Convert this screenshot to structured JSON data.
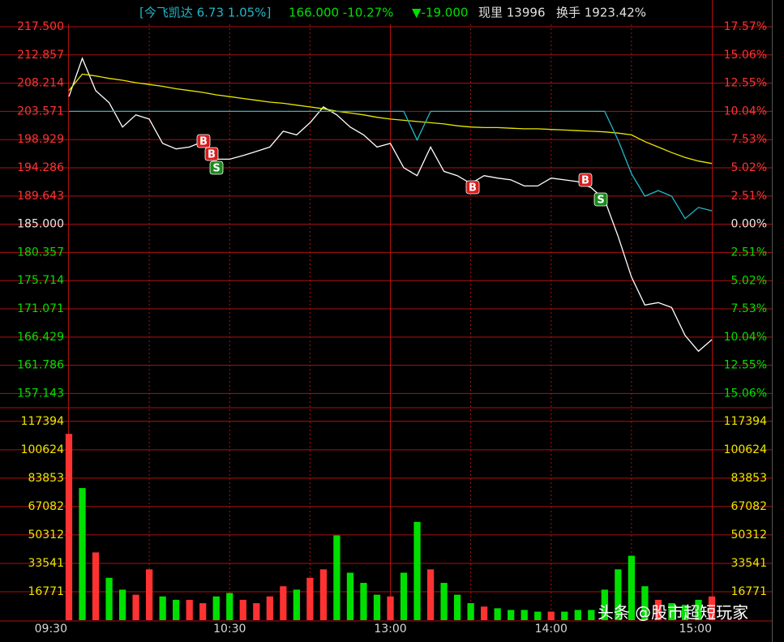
{
  "header": {
    "compare": "[今飞凯达 6.73 1.05%]",
    "price": "166.000 -10.27%",
    "change": "▼-19.000",
    "volume": "现里 13996",
    "turnover": "换手 1923.42%"
  },
  "trade_signals": [
    "B",
    "B",
    "S",
    "B",
    "B",
    "S"
  ],
  "watermark": "头条 @股市超短玩家",
  "chart_data": [
    {
      "type": "line",
      "categories": [
        "09:30",
        null,
        null,
        null,
        null,
        null,
        null,
        null,
        null,
        null,
        null,
        null,
        "10:30",
        null,
        null,
        null,
        null,
        null,
        null,
        null,
        null,
        null,
        null,
        null,
        "13:00",
        null,
        null,
        null,
        null,
        null,
        null,
        null,
        null,
        null,
        null,
        null,
        "14:00",
        null,
        null,
        null,
        null,
        null,
        null,
        null,
        null,
        null,
        null,
        null,
        "15:00"
      ],
      "series": [
        {
          "color": "#ffffff",
          "values": [
            206,
            212.3,
            207,
            205,
            201,
            203,
            202.3,
            198.3,
            197.4,
            197.7,
            198.6,
            195.7,
            195.7,
            196.3,
            197,
            197.7,
            200.3,
            199.7,
            201.7,
            204.3,
            203,
            201,
            199.7,
            197.7,
            198.3,
            194.3,
            193,
            197.7,
            193.7,
            193,
            191.7,
            193,
            192.6,
            192.3,
            191.3,
            191.3,
            192.6,
            192.3,
            192,
            191,
            189,
            183,
            176.3,
            171.7,
            172.1,
            171.3,
            166.7,
            164.1,
            166
          ]
        },
        {
          "color": "#e8e800",
          "values": [
            207,
            209.7,
            209.4,
            209,
            208.7,
            208.3,
            208,
            207.7,
            207.3,
            207,
            206.7,
            206.3,
            206,
            205.7,
            205.4,
            205.1,
            204.9,
            204.6,
            204.3,
            204,
            203.6,
            203.3,
            203,
            202.6,
            202.3,
            202.1,
            201.9,
            201.7,
            201.5,
            201.2,
            201,
            200.9,
            200.9,
            200.8,
            200.7,
            200.7,
            200.6,
            200.5,
            200.4,
            200.3,
            200.2,
            200,
            199.7,
            198.6,
            197.7,
            196.8,
            196,
            195.4,
            195
          ]
        },
        {
          "color": "#1fb8c8",
          "axis": "y2",
          "values": [
            10.04,
            10.04,
            10.04,
            10.04,
            10.04,
            10.04,
            10.04,
            10.04,
            10.04,
            10.04,
            10.04,
            10.04,
            10.04,
            10.04,
            10.04,
            10.04,
            10.04,
            10.04,
            10.04,
            10.04,
            10.04,
            10.04,
            10.04,
            10.04,
            10.04,
            10.04,
            7.5,
            10.04,
            10.04,
            10.04,
            10.04,
            10.04,
            10.04,
            10.04,
            10.04,
            10.04,
            10.04,
            10.04,
            10.04,
            10.04,
            10.04,
            7.5,
            4.5,
            2.5,
            3,
            2.5,
            0.5,
            1.5,
            1.2
          ]
        }
      ],
      "ylim": [
        154.8,
        217.5
      ],
      "yticks": [
        {
          "value": 217.5,
          "label": "217.500"
        },
        212.857,
        208.214,
        203.571,
        198.929,
        194.286,
        189.643,
        {
          "value": 185,
          "label": "185.000"
        },
        180.357,
        175.714,
        171.071,
        166.429,
        161.786,
        157.143
      ],
      "y2lim": [
        -16.32,
        17.57
      ],
      "y2ticks": [
        {
          "value": 17.57,
          "label": "17.57%"
        },
        {
          "value": 15.06,
          "label": "15.06%"
        },
        {
          "value": 12.55,
          "label": "12.55%"
        },
        {
          "value": 10.04,
          "label": "10.04%"
        },
        {
          "value": 7.53,
          "label": "7.53%"
        },
        {
          "value": 5.02,
          "label": "5.02%"
        },
        {
          "value": 2.51,
          "label": "2.51%"
        },
        {
          "value": 0,
          "label": "0.00%"
        },
        {
          "value": -2.51,
          "label": "2.51%"
        },
        {
          "value": -5.02,
          "label": "5.02%"
        },
        {
          "value": -7.53,
          "label": "7.53%"
        },
        {
          "value": -10.04,
          "label": "10.04%"
        },
        {
          "value": -12.55,
          "label": "12.55%"
        },
        {
          "value": -15.06,
          "label": "15.06%"
        }
      ],
      "grid": true
    },
    {
      "type": "bar",
      "values": [
        110000,
        78000,
        40000,
        25000,
        18000,
        15000,
        30000,
        14000,
        12000,
        12000,
        10000,
        14000,
        16000,
        12000,
        10000,
        14000,
        20000,
        18000,
        25000,
        30000,
        50000,
        28000,
        22000,
        15000,
        14000,
        28000,
        58000,
        30000,
        22000,
        15000,
        10000,
        8000,
        7000,
        6000,
        6000,
        5000,
        5000,
        5000,
        6000,
        6000,
        18000,
        30000,
        38000,
        20000,
        12000,
        10000,
        9000,
        12000,
        14000
      ],
      "colors": [
        "#ff3232",
        "#00e000",
        "#ff3232",
        "#00e000",
        "#00e000",
        "#ff3232",
        "#ff3232",
        "#00e000",
        "#00e000",
        "#ff3232",
        "#ff3232",
        "#00e000",
        "#00e000",
        "#ff3232",
        "#ff3232",
        "#ff3232",
        "#ff3232",
        "#00e000",
        "#ff3232",
        "#ff3232",
        "#00e000",
        "#00e000",
        "#00e000",
        "#00e000",
        "#ff3232",
        "#00e000",
        "#00e000",
        "#ff3232",
        "#00e000",
        "#00e000",
        "#00e000",
        "#ff3232",
        "#00e000",
        "#00e000",
        "#00e000",
        "#00e000",
        "#ff3232",
        "#00e000",
        "#00e000",
        "#00e000",
        "#00e000",
        "#00e000",
        "#00e000",
        "#00e000",
        "#ff3232",
        "#00e000",
        "#00e000",
        "#00e000",
        "#ff3232"
      ],
      "ylim": [
        0,
        124000
      ],
      "yticks": [
        117394,
        100624,
        83853,
        67082,
        50312,
        33541,
        16771
      ],
      "grid": true
    }
  ]
}
